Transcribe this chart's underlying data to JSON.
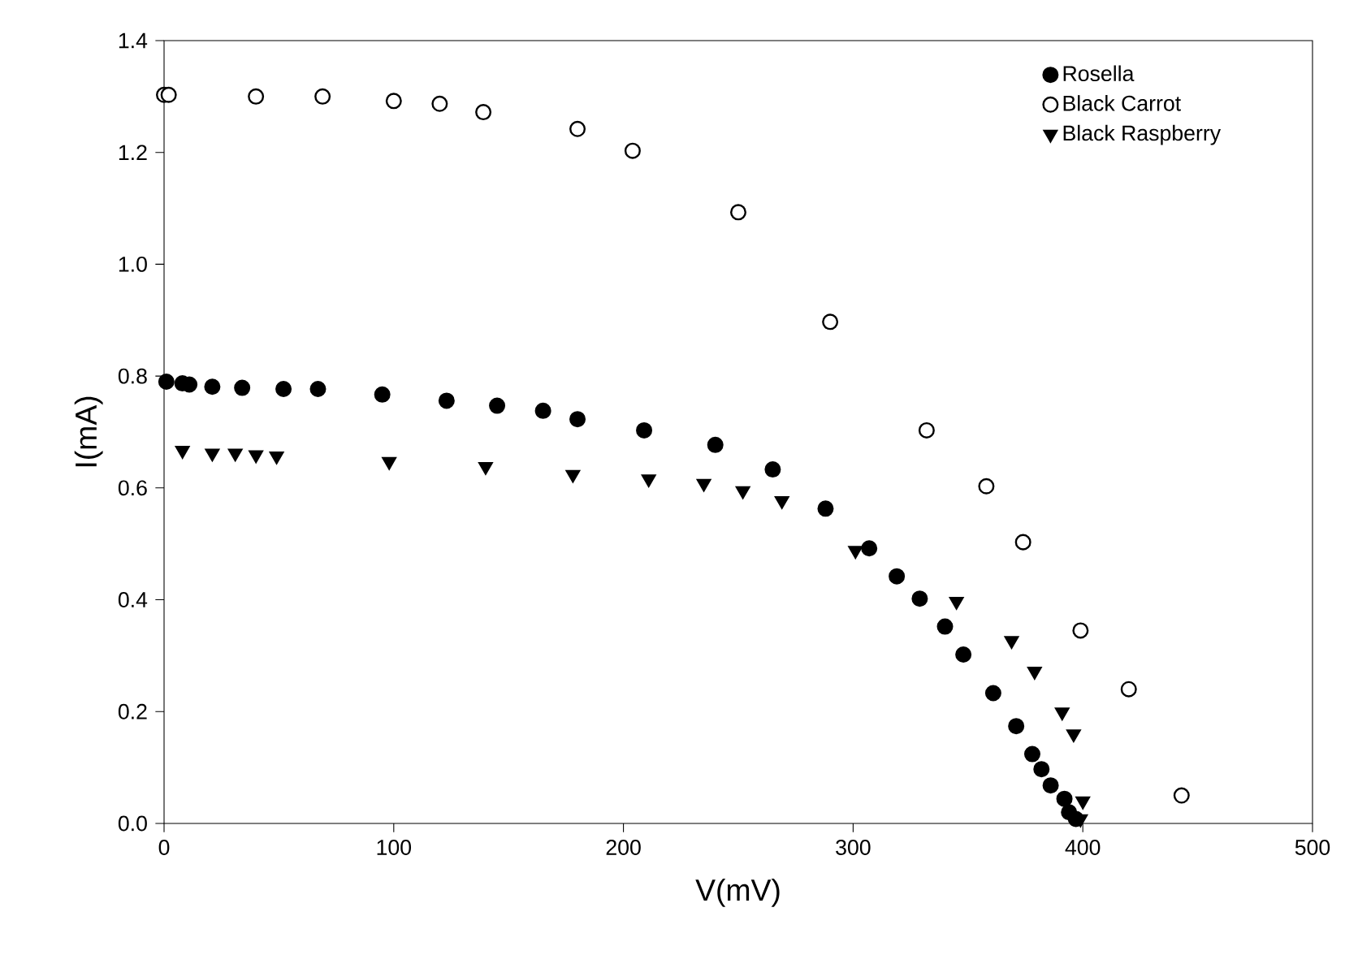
{
  "chart_data": {
    "type": "scatter",
    "xlabel": "V(mV)",
    "ylabel": "I(mA)",
    "xlim": [
      0,
      500
    ],
    "xticks": [
      0,
      100,
      200,
      300,
      400,
      500
    ],
    "ylim": [
      0,
      1.4
    ],
    "yticks": [
      {
        "value": 0,
        "label": "0.0"
      },
      {
        "value": 0.2,
        "label": "0.2"
      },
      {
        "value": 0.4,
        "label": "0.4"
      },
      {
        "value": 0.6,
        "label": "0.6"
      },
      {
        "value": 0.8,
        "label": "0.8"
      },
      {
        "value": 1.0,
        "label": "1.0"
      },
      {
        "value": 1.2,
        "label": "1.2"
      },
      {
        "value": 1.4,
        "label": "1.4"
      }
    ],
    "grid": false,
    "legend": "top right",
    "series": [
      {
        "name": "Rosella",
        "color": "#000000",
        "marker": "circle",
        "x": [
          1,
          8,
          11,
          21,
          34,
          52,
          67,
          95,
          123,
          145,
          165,
          180,
          209,
          240,
          265,
          288,
          307,
          319,
          329,
          340,
          348,
          361,
          371,
          378,
          382,
          386,
          392,
          394,
          397
        ],
        "values": [
          0.79,
          0.787,
          0.785,
          0.781,
          0.779,
          0.777,
          0.777,
          0.767,
          0.756,
          0.747,
          0.738,
          0.723,
          0.703,
          0.677,
          0.633,
          0.563,
          0.492,
          0.442,
          0.402,
          0.352,
          0.302,
          0.233,
          0.174,
          0.124,
          0.097,
          0.068,
          0.044,
          0.02,
          0.008
        ]
      },
      {
        "name": "Black Carrot",
        "color": "#ffffff",
        "marker": "circle",
        "x": [
          0,
          2,
          40,
          69,
          100,
          120,
          139,
          180,
          204,
          250,
          290,
          332,
          358,
          374,
          399,
          420,
          443
        ],
        "values": [
          1.303,
          1.303,
          1.3,
          1.3,
          1.292,
          1.287,
          1.272,
          1.242,
          1.203,
          1.093,
          0.897,
          0.703,
          0.603,
          0.503,
          0.345,
          0.24,
          0.05
        ]
      },
      {
        "name": "Black Raspberry",
        "color": "#000000",
        "marker": "triangle",
        "x": [
          8,
          21,
          31,
          40,
          49,
          98,
          140,
          178,
          211,
          235,
          252,
          269,
          301,
          345,
          369,
          379,
          391,
          396,
          400,
          399
        ],
        "values": [
          0.667,
          0.662,
          0.662,
          0.659,
          0.657,
          0.647,
          0.638,
          0.624,
          0.616,
          0.608,
          0.595,
          0.577,
          0.488,
          0.397,
          0.327,
          0.272,
          0.199,
          0.16,
          0.04,
          0.008
        ]
      }
    ]
  }
}
